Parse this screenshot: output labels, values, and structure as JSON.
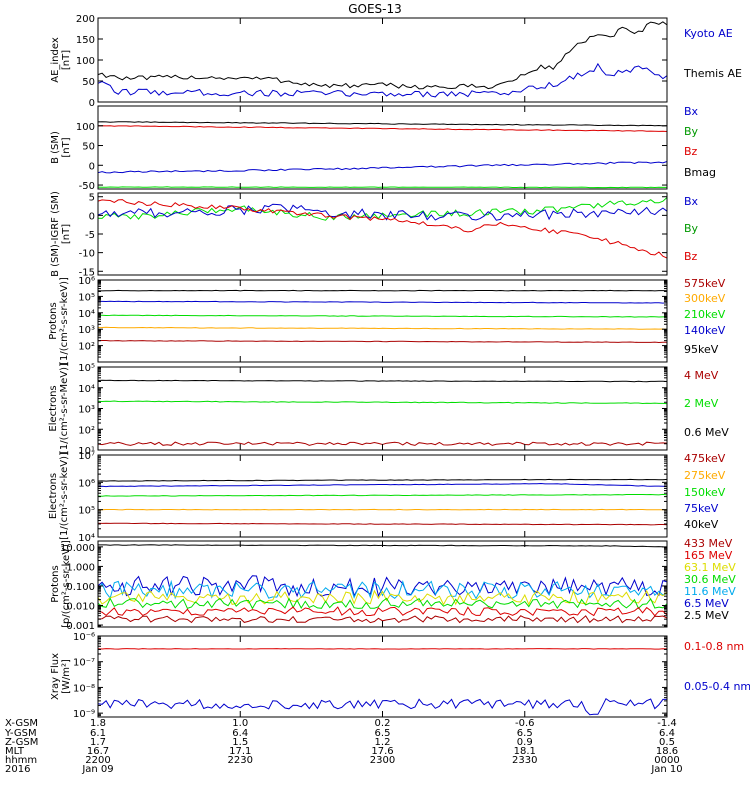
{
  "title": "GOES-13",
  "colors": {
    "blue": "#0000cc",
    "red": "#dd0000",
    "green": "#00dd00",
    "black": "#000000",
    "orange": "#ffaa00",
    "darkred": "#aa0000",
    "cyan": "#00aaee",
    "yellow": "#dddd00",
    "darkgreen": "#009900"
  },
  "chart_data": [
    {
      "type": "line",
      "ylabel": "AE_index [nT]",
      "ylim": [
        0,
        200
      ],
      "ylog": false,
      "ticks": [
        "0",
        "50",
        "100",
        "150",
        "200"
      ],
      "tick_values": [
        0,
        50,
        100,
        150,
        200
      ],
      "legend": [
        {
          "name": "Kyoto AE",
          "color": "blue"
        },
        {
          "name": "Themis AE",
          "color": "black"
        }
      ],
      "series": [
        {
          "name": "Themis AE",
          "color": "black",
          "noise": 0.03,
          "keys": [
            [
              0,
              68
            ],
            [
              0.05,
              55
            ],
            [
              0.15,
              60
            ],
            [
              0.3,
              55
            ],
            [
              0.4,
              38
            ],
            [
              0.5,
              40
            ],
            [
              0.6,
              35
            ],
            [
              0.7,
              38
            ],
            [
              0.74,
              58
            ],
            [
              0.78,
              85
            ],
            [
              0.8,
              80
            ],
            [
              0.83,
              125
            ],
            [
              0.86,
              150
            ],
            [
              0.88,
              160
            ],
            [
              0.9,
              150
            ],
            [
              0.92,
              175
            ],
            [
              0.95,
              165
            ],
            [
              0.97,
              185
            ],
            [
              1.0,
              185
            ]
          ]
        },
        {
          "name": "Kyoto AE",
          "color": "blue",
          "noise": 0.04,
          "keys": [
            [
              0,
              48
            ],
            [
              0.03,
              25
            ],
            [
              0.2,
              22
            ],
            [
              0.4,
              20
            ],
            [
              0.6,
              20
            ],
            [
              0.72,
              20
            ],
            [
              0.76,
              35
            ],
            [
              0.8,
              40
            ],
            [
              0.83,
              60
            ],
            [
              0.86,
              70
            ],
            [
              0.88,
              85
            ],
            [
              0.9,
              65
            ],
            [
              0.93,
              70
            ],
            [
              0.96,
              88
            ],
            [
              0.98,
              60
            ],
            [
              1.0,
              55
            ]
          ]
        }
      ]
    },
    {
      "type": "line",
      "ylabel": "B (SM) [nT]",
      "ylim": [
        -60,
        150
      ],
      "ylog": false,
      "ticks": [
        "-50",
        "0",
        "50",
        "100"
      ],
      "tick_values": [
        -50,
        0,
        50,
        100
      ],
      "legend": [
        {
          "name": "Bx",
          "color": "blue"
        },
        {
          "name": "By",
          "color": "darkgreen"
        },
        {
          "name": "Bz",
          "color": "red"
        },
        {
          "name": "Bmag",
          "color": "black"
        }
      ],
      "series": [
        {
          "name": "Bmag",
          "color": "black",
          "noise": 0.004,
          "keys": [
            [
              0,
              110
            ],
            [
              1.0,
              100
            ]
          ]
        },
        {
          "name": "Bz",
          "color": "red",
          "noise": 0.004,
          "keys": [
            [
              0,
              100
            ],
            [
              1.0,
              86
            ]
          ]
        },
        {
          "name": "Bx",
          "color": "blue",
          "noise": 0.01,
          "keys": [
            [
              0,
              -18
            ],
            [
              0.4,
              -10
            ],
            [
              0.7,
              0
            ],
            [
              1.0,
              8
            ]
          ]
        },
        {
          "name": "By",
          "color": "green",
          "noise": 0.003,
          "keys": [
            [
              0,
              -55
            ],
            [
              1.0,
              -56
            ]
          ]
        }
      ]
    },
    {
      "type": "line",
      "ylabel": "B (SM)-IGRF (SM) [nT]",
      "ylim": [
        -16,
        6
      ],
      "ylog": false,
      "ticks": [
        "-15",
        "-10",
        "-5",
        "0",
        "5"
      ],
      "tick_values": [
        -15,
        -10,
        -5,
        0,
        5
      ],
      "legend": [
        {
          "name": "Bx",
          "color": "blue"
        },
        {
          "name": "By",
          "color": "darkgreen"
        },
        {
          "name": "Bz",
          "color": "red"
        }
      ],
      "series": [
        {
          "name": "By",
          "color": "green",
          "noise": 0.04,
          "keys": [
            [
              0,
              -0.5
            ],
            [
              0.1,
              0
            ],
            [
              0.25,
              2
            ],
            [
              0.4,
              -0.5
            ],
            [
              0.6,
              0.5
            ],
            [
              0.75,
              1
            ],
            [
              0.9,
              3
            ],
            [
              1.0,
              4
            ]
          ]
        },
        {
          "name": "Bx",
          "color": "blue",
          "noise": 0.06,
          "keys": [
            [
              0,
              0.5
            ],
            [
              0.2,
              1
            ],
            [
              0.3,
              2
            ],
            [
              0.5,
              0
            ],
            [
              0.7,
              0
            ],
            [
              0.85,
              0.5
            ],
            [
              1.0,
              1
            ]
          ]
        },
        {
          "name": "Bz",
          "color": "red",
          "noise": 0.03,
          "keys": [
            [
              0,
              4
            ],
            [
              0.1,
              3
            ],
            [
              0.25,
              2
            ],
            [
              0.35,
              0.5
            ],
            [
              0.5,
              -1
            ],
            [
              0.6,
              -2.5
            ],
            [
              0.65,
              -4
            ],
            [
              0.7,
              -2
            ],
            [
              0.75,
              -3.5
            ],
            [
              0.85,
              -5
            ],
            [
              0.95,
              -9
            ],
            [
              1.0,
              -11
            ]
          ]
        }
      ]
    },
    {
      "type": "line",
      "ylabel": "Protons [1/(cm²-s-sr-keV)]",
      "ylim": [
        1,
        6
      ],
      "ylog": true,
      "ticks": [
        "10²",
        "10³",
        "10⁴",
        "10⁵",
        "10⁶"
      ],
      "tick_values": [
        2,
        3,
        4,
        5,
        6
      ],
      "legend": [
        {
          "name": "575keV",
          "color": "darkred"
        },
        {
          "name": "300keV",
          "color": "orange"
        },
        {
          "name": "210keV",
          "color": "green"
        },
        {
          "name": "140keV",
          "color": "blue"
        },
        {
          "name": "95keV",
          "color": "black"
        }
      ],
      "series": [
        {
          "name": "95keV",
          "color": "black",
          "noise": 0.003,
          "keys": [
            [
              0,
              5.35
            ],
            [
              1.0,
              5.35
            ]
          ]
        },
        {
          "name": "140keV",
          "color": "blue",
          "noise": 0.003,
          "keys": [
            [
              0,
              4.7
            ],
            [
              1.0,
              4.6
            ]
          ]
        },
        {
          "name": "210keV",
          "color": "green",
          "noise": 0.003,
          "keys": [
            [
              0,
              3.85
            ],
            [
              1.0,
              3.75
            ]
          ]
        },
        {
          "name": "300keV",
          "color": "orange",
          "noise": 0.003,
          "keys": [
            [
              0,
              3.1
            ],
            [
              1.0,
              3.0
            ]
          ]
        },
        {
          "name": "575keV",
          "color": "darkred",
          "noise": 0.003,
          "keys": [
            [
              0,
              2.3
            ],
            [
              1.0,
              2.2
            ]
          ]
        }
      ]
    },
    {
      "type": "line",
      "ylabel": "Electrons [1/(cm²-s-sr-MeV)]",
      "ylim": [
        1,
        5
      ],
      "ylog": true,
      "ticks": [
        "10¹",
        "10²",
        "10³",
        "10⁴",
        "10⁵"
      ],
      "tick_values": [
        1,
        2,
        3,
        4,
        5
      ],
      "legend": [
        {
          "name": "4 MeV",
          "color": "darkred"
        },
        {
          "name": "2 MeV",
          "color": "green"
        },
        {
          "name": "0.6 MeV",
          "color": "black"
        }
      ],
      "series": [
        {
          "name": "0.6 MeV",
          "color": "black",
          "noise": 0.003,
          "keys": [
            [
              0,
              4.35
            ],
            [
              1.0,
              4.3
            ]
          ]
        },
        {
          "name": "2 MeV",
          "color": "green",
          "noise": 0.004,
          "keys": [
            [
              0,
              3.35
            ],
            [
              1.0,
              3.25
            ]
          ]
        },
        {
          "name": "4 MeV",
          "color": "darkred",
          "noise": 0.02,
          "keys": [
            [
              0,
              1.3
            ],
            [
              1.0,
              1.3
            ]
          ]
        }
      ]
    },
    {
      "type": "line",
      "ylabel": "Electrons [1/(cm²-s-sr-keV)]",
      "ylim": [
        4,
        7
      ],
      "ylog": true,
      "ticks": [
        "10⁴",
        "10⁵",
        "10⁶",
        "10⁷"
      ],
      "tick_values": [
        4,
        5,
        6,
        7
      ],
      "legend": [
        {
          "name": "475keV",
          "color": "darkred"
        },
        {
          "name": "275keV",
          "color": "orange"
        },
        {
          "name": "150keV",
          "color": "green"
        },
        {
          "name": "75keV",
          "color": "blue"
        },
        {
          "name": "40keV",
          "color": "black"
        }
      ],
      "series": [
        {
          "name": "40keV",
          "color": "black",
          "noise": 0.003,
          "keys": [
            [
              0,
              6.05
            ],
            [
              0.8,
              6.1
            ],
            [
              1.0,
              6.1
            ]
          ]
        },
        {
          "name": "75keV",
          "color": "blue",
          "noise": 0.003,
          "keys": [
            [
              0,
              5.85
            ],
            [
              0.8,
              5.95
            ],
            [
              1.0,
              5.85
            ]
          ]
        },
        {
          "name": "150keV",
          "color": "green",
          "noise": 0.003,
          "keys": [
            [
              0,
              5.5
            ],
            [
              1.0,
              5.55
            ]
          ]
        },
        {
          "name": "275keV",
          "color": "orange",
          "noise": 0.003,
          "keys": [
            [
              0,
              5.0
            ],
            [
              1.0,
              5.0
            ]
          ]
        },
        {
          "name": "475keV",
          "color": "darkred",
          "noise": 0.003,
          "keys": [
            [
              0,
              4.5
            ],
            [
              1.0,
              4.45
            ]
          ]
        }
      ]
    },
    {
      "type": "line",
      "ylabel": "Protons [p/(cm²-s-sr-keV)]",
      "ylim": [
        -3.1,
        1.3
      ],
      "ylog": true,
      "ticks": [
        "0.001",
        "0.010",
        "0.100",
        "1.000",
        "10.000"
      ],
      "tick_values": [
        -3,
        -2,
        -1,
        0,
        1
      ],
      "legend": [
        {
          "name": "433 MeV",
          "color": "darkred"
        },
        {
          "name": "165 MeV",
          "color": "red"
        },
        {
          "name": "63.1 MeV",
          "color": "yellow"
        },
        {
          "name": "30.6 MeV",
          "color": "green"
        },
        {
          "name": "11.6 MeV",
          "color": "cyan"
        },
        {
          "name": "6.5 MeV",
          "color": "blue"
        },
        {
          "name": "2.5 MeV",
          "color": "black"
        }
      ],
      "series": [
        {
          "name": "2.5 MeV",
          "color": "black",
          "noise": 0.003,
          "keys": [
            [
              0,
              1.1
            ],
            [
              0.9,
              1.05
            ],
            [
              1.0,
              1.0
            ]
          ]
        },
        {
          "name": "6.5 MeV",
          "color": "blue",
          "noise": 0.12,
          "keys": [
            [
              0,
              -1.0
            ],
            [
              1.0,
              -1.0
            ]
          ]
        },
        {
          "name": "11.6 MeV",
          "color": "cyan",
          "noise": 0.1,
          "keys": [
            [
              0,
              -1.2
            ],
            [
              1.0,
              -1.2
            ]
          ]
        },
        {
          "name": "63.1 MeV",
          "color": "yellow",
          "noise": 0.08,
          "keys": [
            [
              0,
              -1.6
            ],
            [
              1.0,
              -1.6
            ]
          ]
        },
        {
          "name": "30.6 MeV",
          "color": "green",
          "noise": 0.06,
          "keys": [
            [
              0,
              -1.9
            ],
            [
              1.0,
              -1.9
            ]
          ]
        },
        {
          "name": "165 MeV",
          "color": "red",
          "noise": 0.05,
          "keys": [
            [
              0,
              -2.3
            ],
            [
              1.0,
              -2.3
            ]
          ]
        },
        {
          "name": "433 MeV",
          "color": "darkred",
          "noise": 0.04,
          "keys": [
            [
              0,
              -2.7
            ],
            [
              1.0,
              -2.7
            ]
          ]
        }
      ]
    },
    {
      "type": "line",
      "ylabel": "Xray Flux [W/m²]",
      "ylim": [
        -9.15,
        -6.0
      ],
      "ylog": true,
      "ticks": [
        "10⁻⁹",
        "10⁻⁸",
        "10⁻⁷",
        "10⁻⁶"
      ],
      "tick_values": [
        -9,
        -8,
        -7,
        -6
      ],
      "legend": [
        {
          "name": "0.1-0.8 nm",
          "color": "red"
        },
        {
          "name": "0.05-0.4 nm",
          "color": "blue"
        }
      ],
      "series": [
        {
          "name": "0.1-0.8 nm",
          "color": "red",
          "noise": 0.003,
          "keys": [
            [
              0,
              -6.5
            ],
            [
              1.0,
              -6.5
            ]
          ]
        },
        {
          "name": "0.05-0.4 nm",
          "color": "blue",
          "noise": 0.06,
          "keys": [
            [
              0,
              -8.65
            ],
            [
              0.85,
              -8.65
            ],
            [
              0.87,
              -9.1
            ],
            [
              0.89,
              -8.6
            ],
            [
              1.0,
              -8.65
            ]
          ]
        }
      ]
    }
  ],
  "orbit_table": {
    "row_labels": [
      "X-GSM",
      "Y-GSM",
      "Z-GSM",
      "MLT",
      "hhmm",
      "2016"
    ],
    "columns": [
      [
        "1.8",
        "6.1",
        "1.7",
        "16.7",
        "2200",
        "Jan 09"
      ],
      [
        "1.0",
        "6.4",
        "1.5",
        "17.1",
        "2230",
        ""
      ],
      [
        "0.2",
        "6.5",
        "1.2",
        "17.6",
        "2300",
        ""
      ],
      [
        "-0.6",
        "6.5",
        "0.9",
        "18.1",
        "2330",
        ""
      ],
      [
        "-1.4",
        "6.4",
        "0.5",
        "18.6",
        "0000",
        "Jan 10"
      ]
    ]
  }
}
